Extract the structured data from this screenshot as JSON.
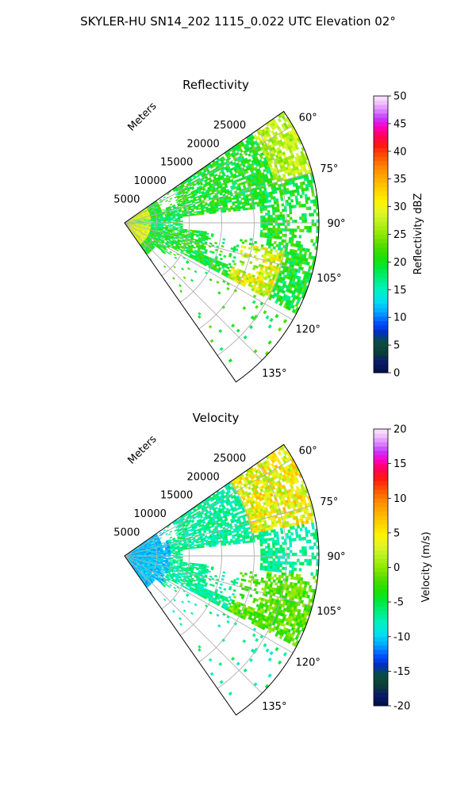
{
  "figure": {
    "title": "SKYLER-HU  SN14_202  1115_0.022 UTC Elevation 02°"
  },
  "chart_data": [
    {
      "type": "heatmap",
      "projection": "polar-sector",
      "title": "Reflectivity",
      "range_label": "Meters",
      "range_ticks": [
        "5000",
        "10000",
        "15000",
        "20000",
        "25000"
      ],
      "range_values": [
        5000,
        10000,
        15000,
        20000,
        25000
      ],
      "range_max": 30000,
      "angle_ticks": [
        "60°",
        "75°",
        "90°",
        "105°",
        "120°",
        "135°"
      ],
      "angle_values": [
        60,
        75,
        90,
        105,
        120,
        135
      ],
      "angle_range": [
        55,
        145
      ],
      "grid": true,
      "colorbar": {
        "label": "Reflectivity dBZ",
        "range": [
          0,
          50
        ],
        "ticks": [
          "0",
          "5",
          "10",
          "15",
          "20",
          "25",
          "30",
          "35",
          "40",
          "45",
          "50"
        ],
        "tick_values": [
          0,
          5,
          10,
          15,
          20,
          25,
          30,
          35,
          40,
          45,
          50
        ]
      },
      "typical_values": {
        "near_range_max": 30,
        "main_echo_mode": 20,
        "clear_gap_near_90deg_from_m": 9000
      }
    },
    {
      "type": "heatmap",
      "projection": "polar-sector",
      "title": "Velocity",
      "range_label": "Meters",
      "range_ticks": [
        "5000",
        "10000",
        "15000",
        "20000",
        "25000"
      ],
      "range_values": [
        5000,
        10000,
        15000,
        20000,
        25000
      ],
      "range_max": 30000,
      "angle_ticks": [
        "60°",
        "75°",
        "90°",
        "105°",
        "120°",
        "135°"
      ],
      "angle_values": [
        60,
        75,
        90,
        105,
        120,
        135
      ],
      "angle_range": [
        55,
        145
      ],
      "grid": true,
      "colorbar": {
        "label": "Velocity (m/s)",
        "range": [
          -20,
          20
        ],
        "ticks": [
          "-20",
          "-15",
          "-10",
          "-5",
          "0",
          "5",
          "10",
          "15",
          "20"
        ],
        "tick_values": [
          -20,
          -15,
          -10,
          -5,
          0,
          5,
          10,
          15,
          20
        ]
      },
      "typical_values": {
        "near_range": -12,
        "main_echo_mode": -7,
        "far_north_max": 8
      }
    }
  ]
}
